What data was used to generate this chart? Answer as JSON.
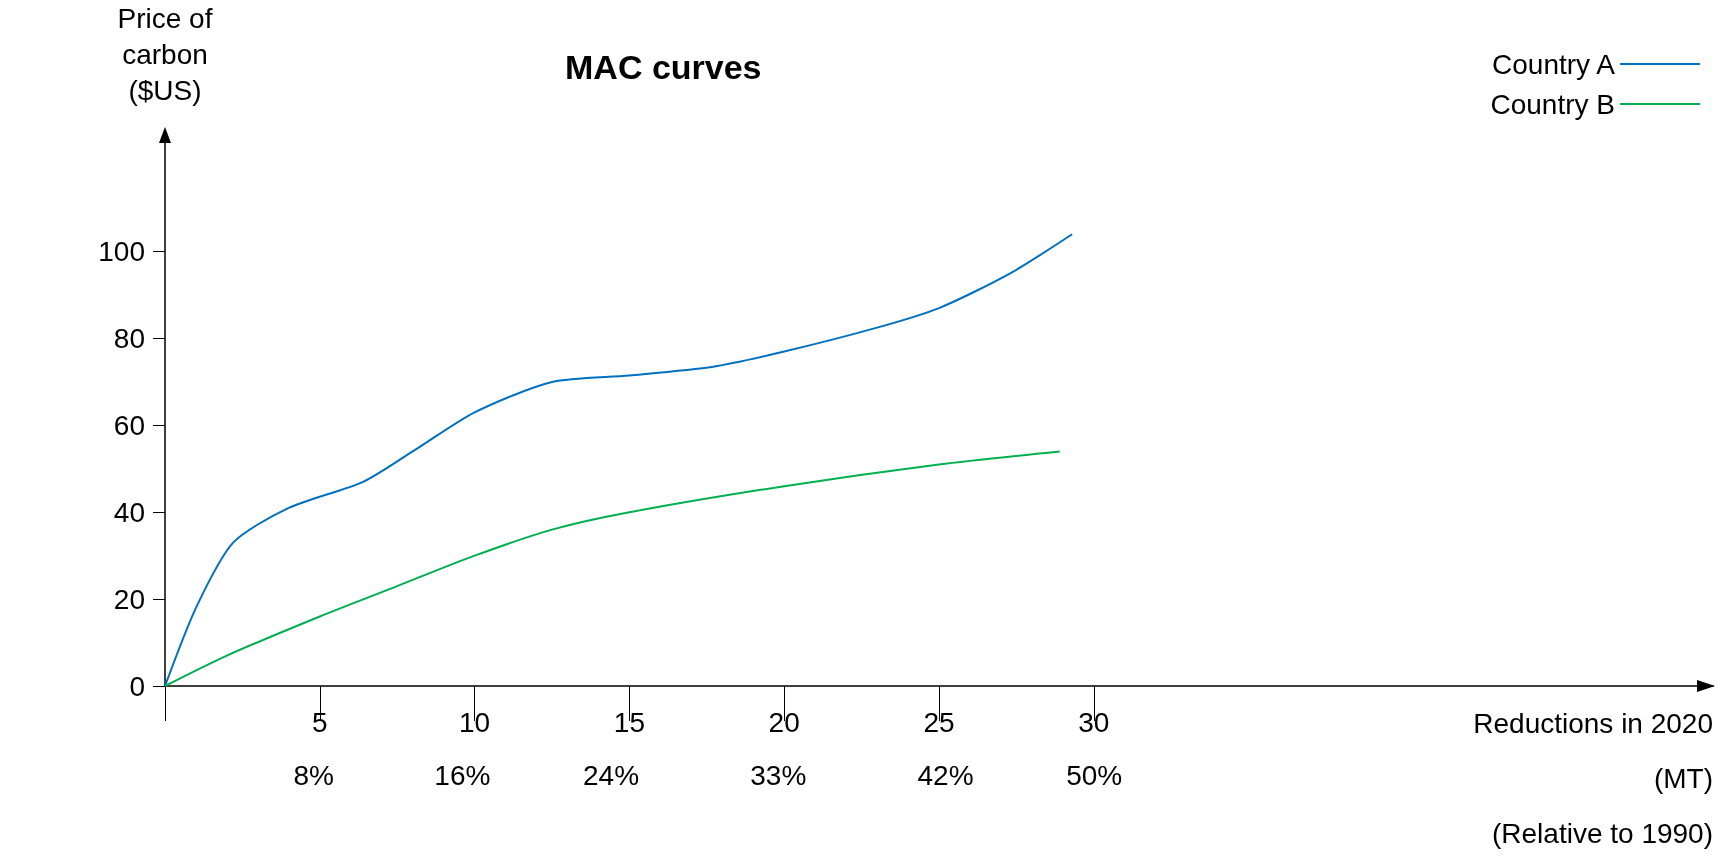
{
  "chart_data": {
    "type": "line",
    "title": "MAC curves",
    "xlabel": "Reductions in 2020\n(MT)\n(Relative to 1990)",
    "ylabel": "Price of\ncarbon\n($US)",
    "series": [
      {
        "name": "Country A",
        "color": "#0070c0",
        "x": [
          0,
          1,
          2.2,
          4,
          6.4,
          8,
          10,
          12.5,
          15,
          17.7,
          20,
          23,
          25,
          27.3,
          29.3
        ],
        "values": [
          0,
          18,
          33,
          41,
          47,
          54,
          63,
          70,
          71.5,
          73.5,
          77,
          82.5,
          87,
          95,
          104
        ]
      },
      {
        "name": "Country B",
        "color": "#00b050",
        "x": [
          0,
          2,
          5,
          7.5,
          10,
          12.5,
          15,
          20,
          25,
          28.9
        ],
        "values": [
          0,
          7,
          16,
          23,
          30,
          36,
          40,
          46,
          51,
          54
        ]
      }
    ],
    "xlim": [
      0,
      50
    ],
    "xticks": [
      {
        "value": 0,
        "label": null
      },
      5,
      10,
      15,
      20,
      25,
      30
    ],
    "x2lim": [
      0,
      83.3
    ],
    "x2ticks": [
      {
        "value": 8,
        "label": "8%"
      },
      {
        "value": 16,
        "label": "16%"
      },
      {
        "value": 24,
        "label": "24%"
      },
      {
        "value": 33,
        "label": "33%"
      },
      {
        "value": 42,
        "label": "42%"
      },
      {
        "value": 50,
        "label": "50%"
      }
    ],
    "ylim": [
      0,
      125
    ],
    "yticks": [
      0,
      20,
      40,
      60,
      80,
      100
    ],
    "grid": false,
    "legend": "top right",
    "marker": "none",
    "line_style": "solid"
  }
}
